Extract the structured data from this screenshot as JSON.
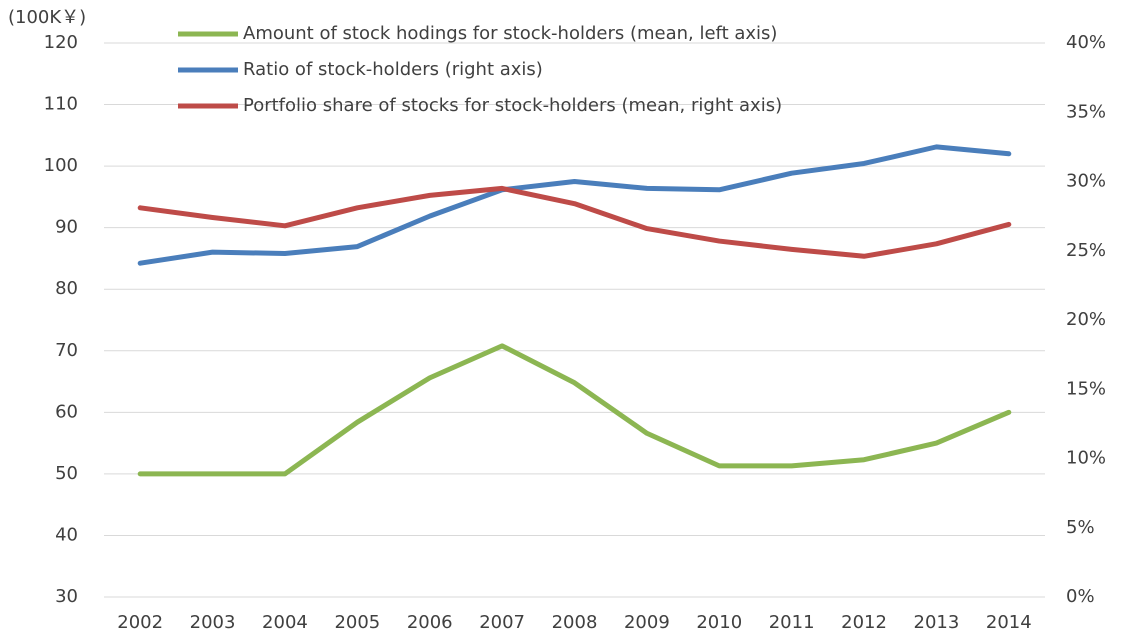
{
  "chart_data": {
    "type": "line",
    "y_label": "(100K￥)",
    "categories": [
      "2002",
      "2003",
      "2004",
      "2005",
      "2006",
      "2007",
      "2008",
      "2009",
      "2010",
      "2011",
      "2012",
      "2013",
      "2014"
    ],
    "series": [
      {
        "name": "Amount of stock hodings for stock-holders (mean, left axis)",
        "color": "#8cb652",
        "axis": "y",
        "values": [
          50,
          50,
          50,
          58.4,
          65.6,
          70.8,
          64.8,
          56.6,
          51.3,
          51.3,
          52.3,
          55,
          60
        ]
      },
      {
        "name": "Ratio of stock-holders (right axis)",
        "color": "#4a7ebb",
        "axis": "y2",
        "values": [
          24.1,
          24.9,
          24.8,
          25.3,
          27.5,
          29.4,
          30.0,
          29.5,
          29.4,
          30.6,
          31.3,
          32.5,
          32.0
        ]
      },
      {
        "name": "Portfolio share of stocks for stock-holders (mean, right axis)",
        "color": "#be4b48",
        "axis": "y2",
        "values": [
          28.1,
          27.4,
          26.8,
          28.1,
          29.0,
          29.5,
          28.4,
          26.6,
          25.7,
          25.1,
          24.6,
          25.5,
          26.9
        ]
      }
    ],
    "ylim": [
      30,
      120
    ],
    "yticks": [
      30,
      40,
      50,
      60,
      70,
      80,
      90,
      100,
      110,
      120
    ],
    "y2lim": [
      0,
      40
    ],
    "y2ticks": [
      {
        "value": 0,
        "label": "0%"
      },
      {
        "value": 5,
        "label": "5%"
      },
      {
        "value": 10,
        "label": "10%"
      },
      {
        "value": 15,
        "label": "15%"
      },
      {
        "value": 20,
        "label": "20%"
      },
      {
        "value": 25,
        "label": "25%"
      },
      {
        "value": 30,
        "label": "30%"
      },
      {
        "value": 35,
        "label": "35%"
      },
      {
        "value": 40,
        "label": "40%"
      }
    ],
    "grid": true
  }
}
